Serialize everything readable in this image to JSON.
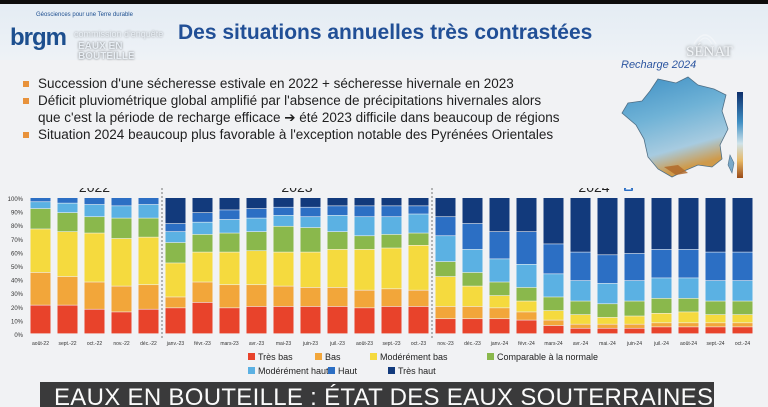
{
  "slide": {
    "title": "Des situations annuelles très contrastées",
    "logo": {
      "name": "brgm",
      "tagline": "Géosciences pour une Terre durable"
    },
    "overlay": {
      "line1": "commission d'enquête",
      "line2": "EAUX EN",
      "line3": "BOUTEILLE"
    },
    "senat_logo": "SÉNAT",
    "map_title": "Recharge 2024",
    "bullets": [
      "Succession d'une sécheresse estivale en 2022 + sécheresse hivernale en 2023",
      "Déficit pluviométrique global amplifié par l'absence de précipitations hivernales alors",
      "que c'est la période de recharge efficace ➔ été 2023 difficile dans beaucoup de régions",
      "Situation 2024 beaucoup plus favorable à l'exception notable des Pyrénées Orientales"
    ]
  },
  "footer": {
    "text": "EAUX EN BOUTEILLE : ÉTAT DES EAUX SOUTERRAINES"
  },
  "chart_data": {
    "type": "bar",
    "stacked": true,
    "year_labels": [
      "2022",
      "2023",
      "2024"
    ],
    "year_markers_after": [
      "déc.-22",
      "oct.-23"
    ],
    "categories": [
      "août-22",
      "sept.-22",
      "oct.-22",
      "nov.-22",
      "déc.-22",
      "janv.-23",
      "févr.-23",
      "mars-23",
      "avr.-23",
      "mai-23",
      "juin-23",
      "juil.-23",
      "août-23",
      "sept.-23",
      "oct.-23",
      "nov.-23",
      "déc.-23",
      "janv.-24",
      "févr.-24",
      "mars-24",
      "avr.-24",
      "mai.-24",
      "juin-24",
      "juil.-24",
      "août-24",
      "sept.-24",
      "oct.-24"
    ],
    "y_ticks": [
      "0%",
      "10%",
      "20%",
      "30%",
      "40%",
      "50%",
      "60%",
      "70%",
      "80%",
      "90%",
      "100%"
    ],
    "ylim": [
      0,
      100
    ],
    "series": [
      {
        "name": "Très bas",
        "color": "#e8432b",
        "values": [
          21,
          21,
          18,
          16,
          18,
          19,
          23,
          19,
          20,
          20,
          20,
          20,
          19,
          20,
          20,
          11,
          11,
          11,
          10,
          6,
          4,
          4,
          4,
          5,
          5,
          5,
          5
        ]
      },
      {
        "name": "Bas",
        "color": "#f2a63a",
        "values": [
          24,
          21,
          20,
          19,
          18,
          8,
          15,
          17,
          16,
          15,
          14,
          14,
          13,
          13,
          12,
          9,
          9,
          8,
          6,
          4,
          3,
          3,
          3,
          3,
          3,
          3,
          3
        ]
      },
      {
        "name": "Modérément bas",
        "color": "#f5da3e",
        "values": [
          32,
          33,
          36,
          35,
          35,
          25,
          22,
          24,
          25,
          25,
          26,
          28,
          30,
          30,
          33,
          22,
          15,
          9,
          8,
          7,
          7,
          5,
          6,
          7,
          8,
          6,
          6
        ]
      },
      {
        "name": "Comparable à la normale",
        "color": "#8ab84c",
        "values": [
          15,
          14,
          12,
          15,
          14,
          15,
          13,
          14,
          14,
          19,
          18,
          13,
          10,
          10,
          9,
          11,
          10,
          10,
          10,
          10,
          10,
          10,
          11,
          11,
          10,
          10,
          10
        ]
      },
      {
        "name": "Modérément haut",
        "color": "#5bb1e3",
        "values": [
          5,
          7,
          9,
          9,
          10,
          8,
          9,
          10,
          10,
          8,
          8,
          12,
          14,
          13,
          14,
          19,
          17,
          17,
          17,
          17,
          15,
          15,
          15,
          15,
          15,
          15,
          15
        ]
      },
      {
        "name": "Haut",
        "color": "#2c6fc4",
        "values": [
          3,
          4,
          5,
          6,
          5,
          6,
          7,
          7,
          7,
          6,
          7,
          7,
          8,
          8,
          6,
          14,
          19,
          20,
          24,
          22,
          21,
          21,
          20,
          21,
          21,
          21,
          21
        ]
      },
      {
        "name": "Très haut",
        "color": "#123a7c",
        "values": [
          0,
          0,
          0,
          0,
          0,
          19,
          11,
          9,
          8,
          7,
          7,
          6,
          6,
          6,
          6,
          14,
          19,
          25,
          25,
          34,
          40,
          42,
          41,
          38,
          38,
          40,
          40
        ]
      }
    ]
  }
}
